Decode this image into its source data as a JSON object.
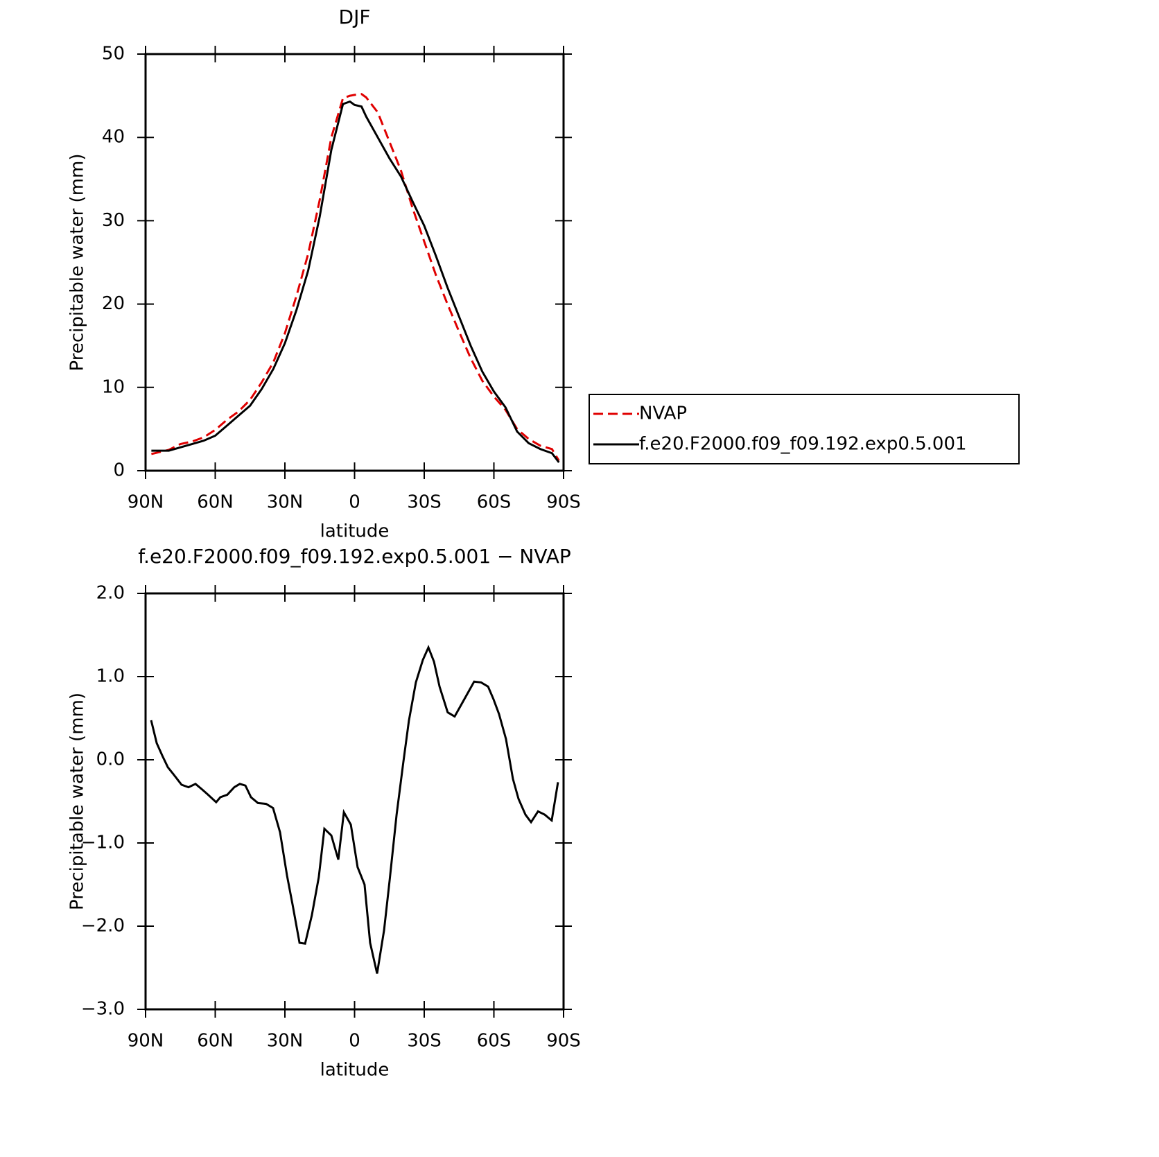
{
  "chart_data": [
    {
      "type": "line",
      "title": "DJF",
      "xlabel": "latitude",
      "ylabel": "Precipitable water (mm)",
      "x": [
        87.5,
        80,
        75,
        70,
        65,
        60,
        55,
        50,
        45,
        40,
        35,
        30,
        25,
        20,
        15,
        10,
        5,
        2,
        0,
        -3,
        -5,
        -10,
        -15,
        -20,
        -25,
        -30,
        -35,
        -40,
        -45,
        -50,
        -55,
        -60,
        -65,
        -70,
        -75,
        -80,
        -85,
        -88
      ],
      "series": [
        {
          "name": "NVAP",
          "color": "#e00000",
          "line_style": "dashed",
          "values": [
            2.0,
            2.5,
            3.2,
            3.5,
            4.0,
            4.9,
            6.1,
            7.1,
            8.5,
            10.6,
            13.0,
            16.5,
            21.0,
            26.0,
            32.5,
            40.0,
            44.7,
            45.0,
            45.1,
            45.2,
            44.8,
            43.0,
            39.5,
            36.0,
            31.5,
            27.5,
            23.5,
            20.0,
            16.7,
            13.5,
            10.8,
            8.9,
            7.3,
            5.0,
            3.8,
            3.0,
            2.6,
            1.2
          ]
        },
        {
          "name": "f.e20.F2000.f09_f09.192.exp0.5.001",
          "color": "#000000",
          "line_style": "solid",
          "values": [
            2.4,
            2.4,
            2.8,
            3.2,
            3.6,
            4.2,
            5.4,
            6.6,
            7.8,
            9.8,
            12.2,
            15.3,
            19.3,
            24.0,
            30.5,
            38.5,
            44.0,
            44.3,
            43.9,
            43.7,
            42.5,
            40.0,
            37.5,
            35.3,
            32.3,
            29.4,
            25.8,
            22.0,
            18.5,
            15.0,
            11.9,
            9.5,
            7.6,
            4.7,
            3.3,
            2.6,
            2.1,
            1.0
          ]
        }
      ],
      "xlim": [
        90,
        -90
      ],
      "xticks": [
        {
          "value": 90,
          "label": "90N"
        },
        {
          "value": 60,
          "label": "60N"
        },
        {
          "value": 30,
          "label": "30N"
        },
        0,
        {
          "value": -30,
          "label": "30S"
        },
        {
          "value": -60,
          "label": "60S"
        },
        {
          "value": -90,
          "label": "90S"
        }
      ],
      "ylim": [
        0,
        50
      ],
      "yticks": [
        0,
        10,
        20,
        30,
        40,
        50
      ],
      "legend": "right"
    },
    {
      "type": "line",
      "title": "f.e20.F2000.f09_f09.192.exp0.5.001 − NVAP",
      "xlabel": "latitude",
      "ylabel": "Precipitable water (mm)",
      "x": [
        87.6,
        85.2,
        82.8,
        80.4,
        78.1,
        74.5,
        71.5,
        68.5,
        65.5,
        63.1,
        59.6,
        57.8,
        54.8,
        51.8,
        49.4,
        47.0,
        44.6,
        41.6,
        38.1,
        35.1,
        32.1,
        29.1,
        26.7,
        23.7,
        21.3,
        18.4,
        15.4,
        13.0,
        10.0,
        7.0,
        4.6,
        1.6,
        -1.3,
        -4.3,
        -6.7,
        -9.7,
        -12.7,
        -15.1,
        -18.1,
        -21.0,
        -23.4,
        -26.4,
        -29.4,
        -31.8,
        -34.2,
        -36.6,
        -40.1,
        -43.1,
        -46.1,
        -49.1,
        -51.5,
        -54.5,
        -57.5,
        -59.8,
        -62.2,
        -65.2,
        -68.2,
        -70.6,
        -73.6,
        -76.0,
        -79.0,
        -81.9,
        -84.9,
        -87.6
      ],
      "series": [
        {
          "color": "#000000",
          "line_style": "solid",
          "values": [
            0.475,
            0.2,
            0.05,
            -0.09,
            -0.17,
            -0.3,
            -0.33,
            -0.29,
            -0.36,
            -0.42,
            -0.51,
            -0.45,
            -0.42,
            -0.33,
            -0.29,
            -0.31,
            -0.45,
            -0.52,
            -0.53,
            -0.58,
            -0.87,
            -1.39,
            -1.74,
            -2.2,
            -2.21,
            -1.87,
            -1.41,
            -0.83,
            -0.91,
            -1.2,
            -0.63,
            -0.78,
            -1.29,
            -1.5,
            -2.2,
            -2.57,
            -2.05,
            -1.45,
            -0.66,
            -0.03,
            0.47,
            0.93,
            1.2,
            1.35,
            1.18,
            0.88,
            0.57,
            0.52,
            0.67,
            0.82,
            0.94,
            0.93,
            0.88,
            0.73,
            0.55,
            0.25,
            -0.23,
            -0.47,
            -0.66,
            -0.75,
            -0.62,
            -0.66,
            -0.73,
            -0.27
          ]
        }
      ],
      "xlim": [
        90,
        -90
      ],
      "xticks": [
        {
          "value": 90,
          "label": "90N"
        },
        {
          "value": 60,
          "label": "60N"
        },
        {
          "value": 30,
          "label": "30N"
        },
        0,
        {
          "value": -30,
          "label": "30S"
        },
        {
          "value": -60,
          "label": "60S"
        },
        {
          "value": -90,
          "label": "90S"
        }
      ],
      "ylim": [
        -3,
        2
      ],
      "yticks": [
        {
          "value": -3,
          "label": "−3.0"
        },
        {
          "value": -2,
          "label": "−2.0"
        },
        {
          "value": -1,
          "label": "−1.0"
        },
        {
          "value": 0,
          "label": "0.0"
        },
        {
          "value": 1,
          "label": "1.0"
        },
        {
          "value": 2,
          "label": "2.0"
        }
      ]
    }
  ]
}
